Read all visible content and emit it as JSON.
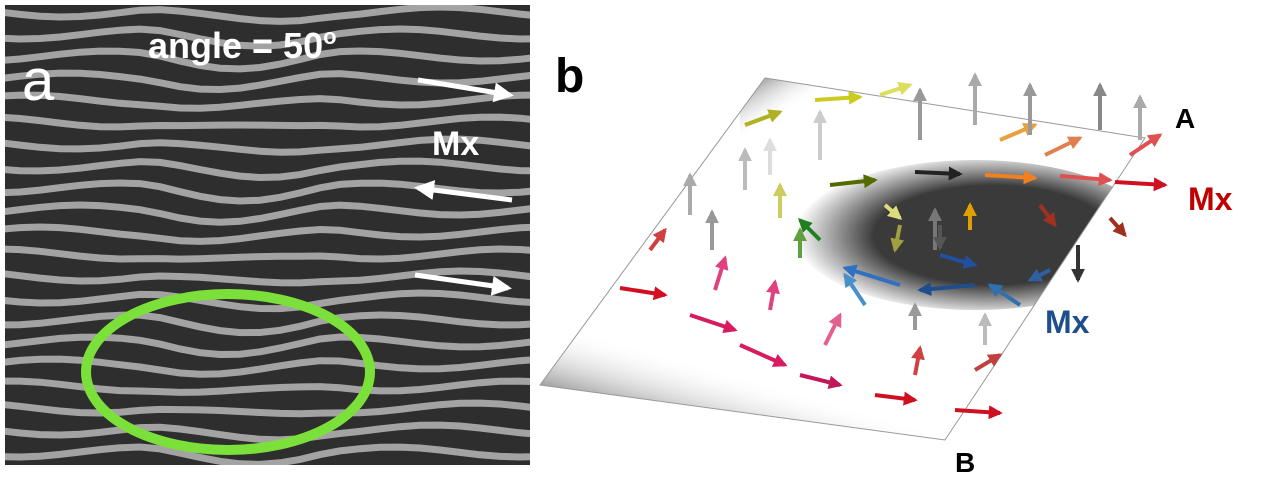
{
  "panel_a": {
    "label": "a",
    "angle_text": "angle = 50",
    "angle_superscript": "o",
    "arrow_label": "Mx"
  },
  "panel_b": {
    "label": "b",
    "corner_a": "A",
    "corner_b": "B",
    "red_label": "Mx",
    "blue_label": "Mx"
  }
}
